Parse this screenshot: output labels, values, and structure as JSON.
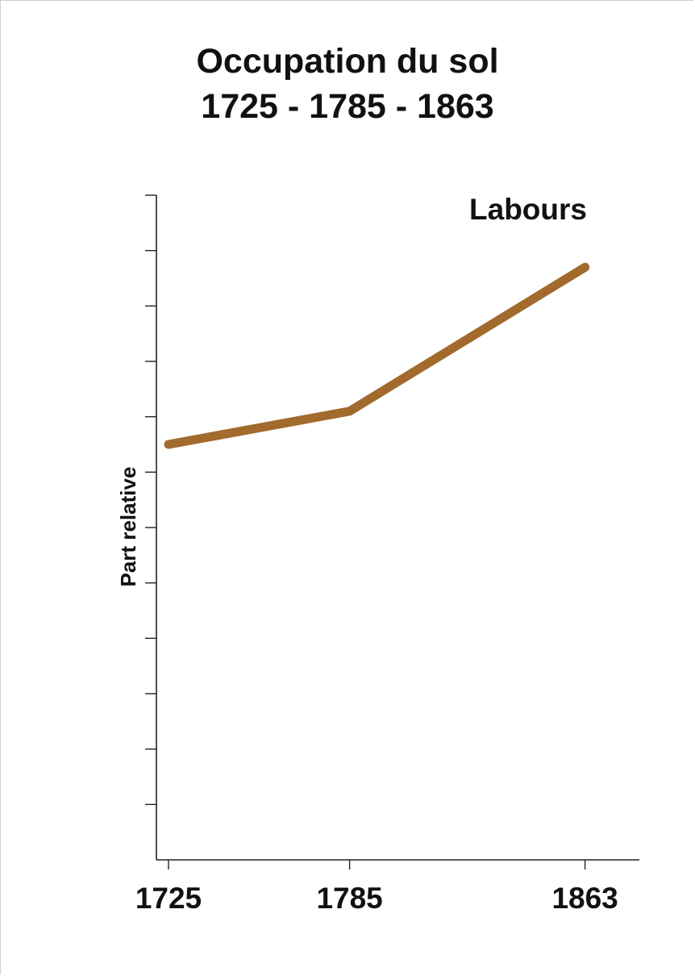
{
  "chart_data": {
    "type": "line",
    "title": [
      "Occupation du sol",
      "1725 - 1785 - 1863"
    ],
    "xlabel": "",
    "ylabel": "Part relative",
    "x": [
      1725,
      1785,
      1863
    ],
    "x_tick_labels": [
      "1725",
      "1785",
      "1863"
    ],
    "xlim": [
      1721,
      1881
    ],
    "ylim": [
      0,
      12
    ],
    "y_tick_labels_shown": false,
    "grid": false,
    "series": [
      {
        "name": "Labours",
        "values": [
          7.5,
          8.1,
          10.7
        ],
        "color": "#a26a2c"
      }
    ],
    "legend": {
      "placement": "top-right"
    }
  }
}
